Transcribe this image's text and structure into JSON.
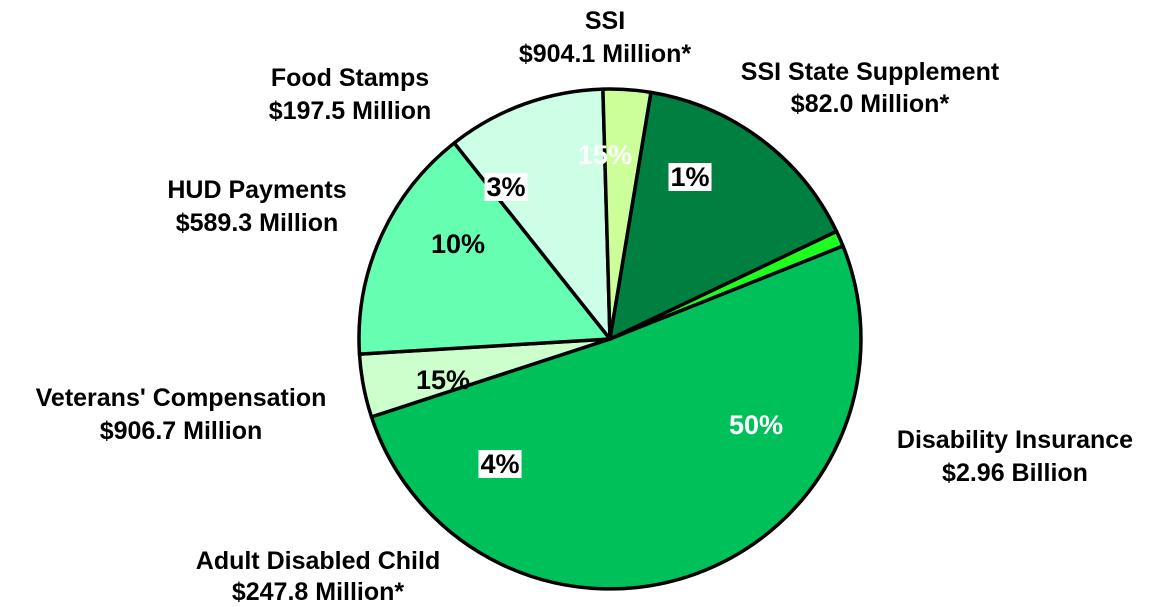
{
  "chart_data": {
    "type": "pie",
    "title": "",
    "slices": [
      {
        "label": "SSI State Supplement",
        "amount": "$82.0 Million*",
        "percent": 1,
        "pct_label": "1%",
        "color": "#1fff1f",
        "pct_color": "#000000",
        "pct_bg": "#ffffff"
      },
      {
        "label": "Disability Insurance",
        "amount": "$2.96 Billion",
        "percent": 50,
        "pct_label": "50%",
        "color": "#00c05a",
        "pct_color": "#ffffff",
        "pct_bg": ""
      },
      {
        "label": "Adult Disabled Child",
        "amount": "$247.8 Million*",
        "percent": 4,
        "pct_label": "4%",
        "color": "#ccffcc",
        "pct_color": "#000000",
        "pct_bg": "#ffffff"
      },
      {
        "label": "Veterans' Compensation",
        "amount": "$906.7 Million",
        "percent": 15,
        "pct_label": "15%",
        "color": "#66ffb2",
        "pct_color": "#000000",
        "pct_bg": ""
      },
      {
        "label": "HUD Payments",
        "amount": "$589.3 Million",
        "percent": 10,
        "pct_label": "10%",
        "color": "#ccffe6",
        "pct_color": "#000000",
        "pct_bg": ""
      },
      {
        "label": "Food Stamps",
        "amount": "$197.5 Million",
        "percent": 3,
        "pct_label": "3%",
        "color": "#ccff99",
        "pct_color": "#000000",
        "pct_bg": "#ffffff"
      },
      {
        "label": "SSI",
        "amount": "$904.1 Million*",
        "percent": 15,
        "pct_label": "15%",
        "color": "#008040",
        "pct_color": "#ffffff",
        "pct_bg": ""
      }
    ]
  }
}
